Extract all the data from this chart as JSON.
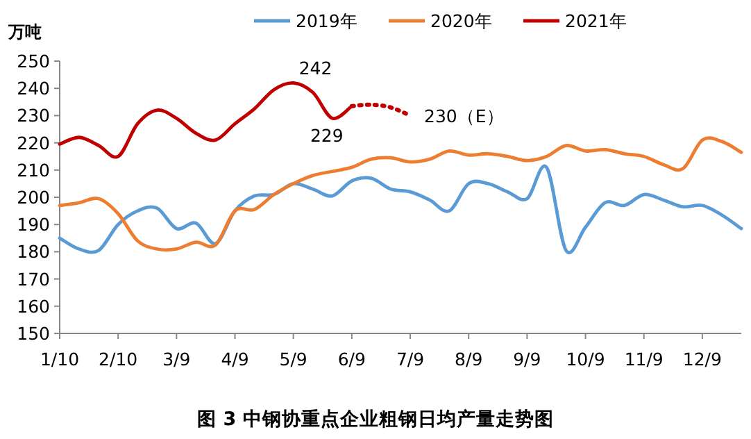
{
  "chart_data": {
    "type": "line",
    "title": "图 3  中钢协重点企业粗钢日均产量走势图",
    "ylabel": "万吨",
    "categories": [
      "1/10",
      null,
      null,
      "2/10",
      null,
      null,
      "3/9",
      null,
      null,
      "4/9",
      null,
      null,
      "5/9",
      null,
      null,
      "6/9",
      null,
      null,
      "7/9",
      null,
      null,
      "8/9",
      null,
      null,
      "9/9",
      null,
      null,
      "10/9",
      null,
      null,
      "11/9",
      null,
      null,
      "12/9",
      null,
      null
    ],
    "ylim": [
      150,
      250
    ],
    "yticks": [
      150,
      160,
      170,
      180,
      190,
      200,
      210,
      220,
      230,
      240,
      250
    ],
    "grid": false,
    "legend": "top",
    "marker": "none",
    "series": [
      {
        "name": "2019年",
        "color": "#5b9bd5",
        "line_style": "solid",
        "values": [
          185,
          181,
          180.5,
          190,
          195,
          196,
          188.5,
          190.5,
          183,
          195,
          200.5,
          201,
          205,
          203,
          200.5,
          206,
          207,
          203,
          202,
          199,
          195,
          205,
          205,
          202,
          199.5,
          211,
          180.5,
          189,
          198,
          197,
          201,
          199,
          196.5,
          197,
          193.5,
          188.5
        ]
      },
      {
        "name": "2020年",
        "color": "#ed7d31",
        "line_style": "solid",
        "values": [
          197,
          198,
          199.5,
          194,
          184,
          181,
          181,
          183.5,
          182.5,
          195,
          195.5,
          201,
          205,
          208,
          209.5,
          211,
          214,
          214.5,
          213,
          214,
          217,
          215.5,
          216,
          215,
          213.5,
          215,
          219,
          217,
          217.5,
          216,
          215,
          212,
          210.5,
          221,
          220.5,
          216.5
        ]
      },
      {
        "name": "2021年",
        "color": "#c00000",
        "line_style": "solid",
        "values": [
          219.5,
          222,
          219,
          215,
          227,
          232,
          229,
          223.5,
          221,
          227,
          232.5,
          239.5,
          242,
          238.5,
          229,
          233.5,
          null,
          null,
          null,
          null,
          null,
          null,
          null,
          null,
          null,
          null,
          null,
          null,
          null,
          null,
          null,
          null,
          null,
          null,
          null,
          null
        ],
        "value_labels": [
          null,
          null,
          null,
          null,
          null,
          null,
          null,
          null,
          null,
          null,
          null,
          null,
          "242",
          null,
          "229",
          null,
          null,
          null,
          null,
          null,
          null,
          null,
          null,
          null,
          null,
          null,
          null,
          null,
          null,
          null,
          null,
          null,
          null,
          null,
          null,
          null
        ]
      },
      {
        "color": "#c00000",
        "line_style": "dotted",
        "values": [
          null,
          null,
          null,
          null,
          null,
          null,
          null,
          null,
          null,
          null,
          null,
          null,
          null,
          null,
          null,
          233.5,
          234,
          233,
          230,
          null,
          null,
          null,
          null,
          null,
          null,
          null,
          null,
          null,
          null,
          null,
          null,
          null,
          null,
          null,
          null,
          null
        ],
        "value_labels": [
          null,
          null,
          null,
          null,
          null,
          null,
          null,
          null,
          null,
          null,
          null,
          null,
          null,
          null,
          null,
          null,
          null,
          null,
          "230（E）",
          null,
          null,
          null,
          null,
          null,
          null,
          null,
          null,
          null,
          null,
          null,
          null,
          null,
          null,
          null,
          null,
          null
        ]
      }
    ]
  }
}
